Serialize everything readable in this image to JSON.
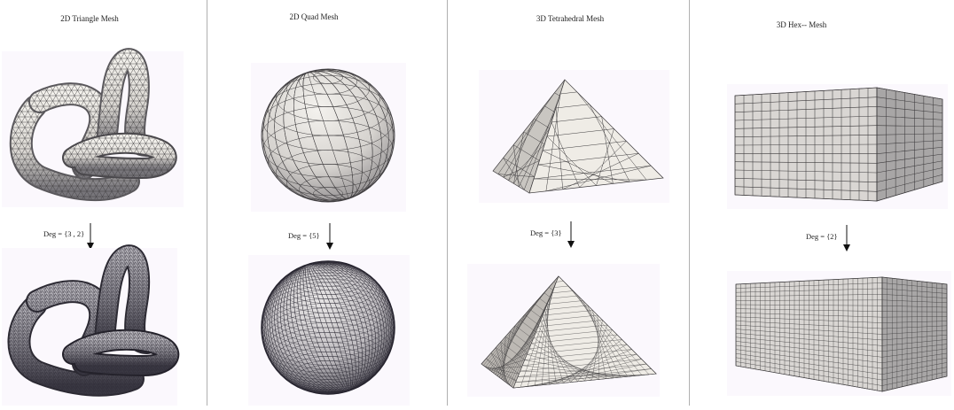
{
  "panels": [
    {
      "title": "2D Triangle Mesh",
      "degree_label": "Deg = {3 , 2}"
    },
    {
      "title": "2D Quad Mesh",
      "degree_label": "Deg = {5}"
    },
    {
      "title": "3D Tetrahedral Mesh",
      "degree_label": "Deg = {3}"
    },
    {
      "title": "3D Hex-- Mesh",
      "degree_label": "Deg = {2}"
    }
  ],
  "colors": {
    "surface_light": "#efece6",
    "surface_shade": "#9d9a96",
    "edge_coarse": "#3e3c3e",
    "edge_fine": "#2d2b35",
    "panel_background": "#fbf8fd"
  }
}
